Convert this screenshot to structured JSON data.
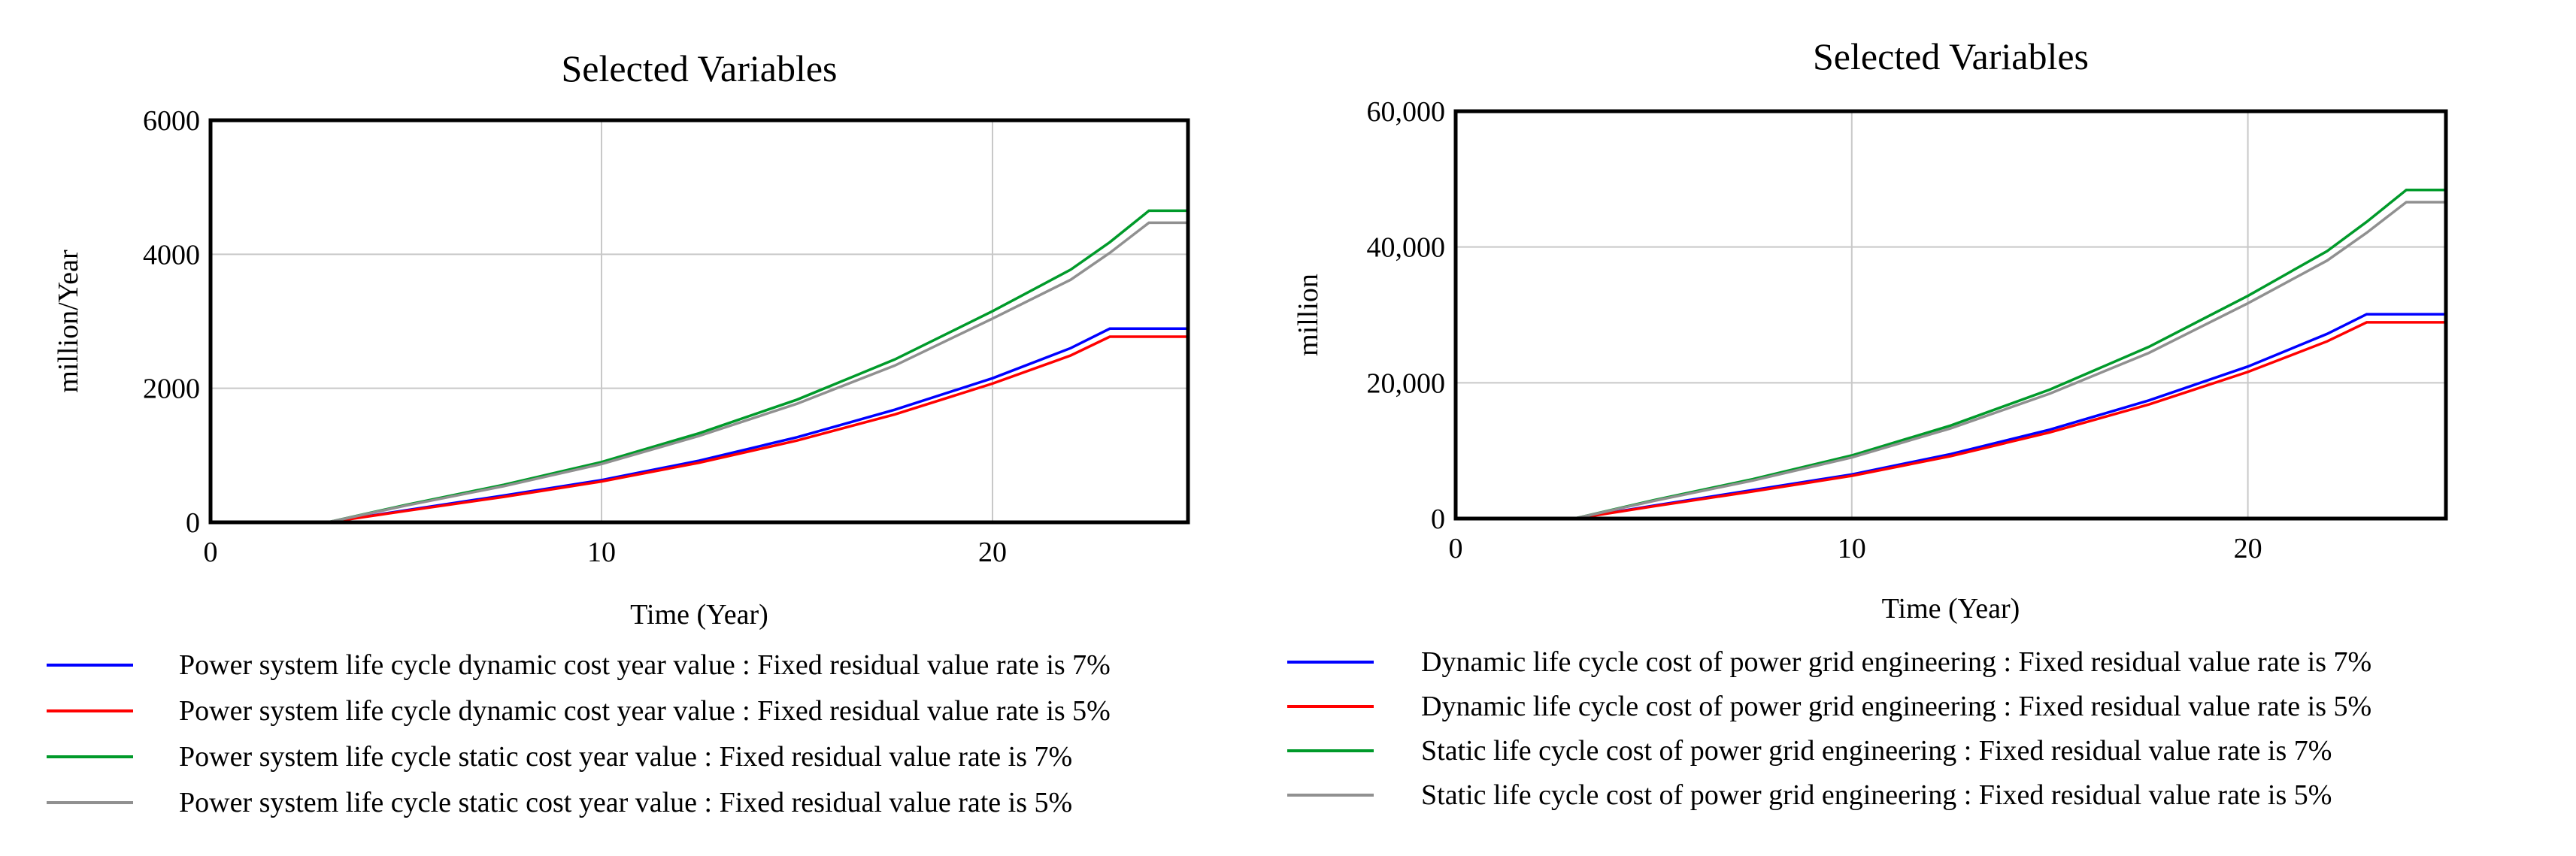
{
  "chart_data": [
    {
      "type": "line",
      "title": "Selected Variables",
      "xlabel": "Time (Year)",
      "ylabel": "million/Year",
      "xlim": [
        0,
        25
      ],
      "ylim": [
        0,
        6000
      ],
      "x_ticks": [
        "0",
        "10",
        "20"
      ],
      "x_tick_values": [
        0,
        10,
        20
      ],
      "y_ticks": [
        "0",
        "2000",
        "4000",
        "6000"
      ],
      "y_tick_values": [
        0,
        2000,
        4000,
        6000
      ],
      "grid": true,
      "legend_position": "bottom",
      "x": [
        0,
        3,
        5,
        7.5,
        10,
        12.5,
        15,
        17.5,
        20,
        22,
        23,
        24,
        25
      ],
      "series": [
        {
          "name": "Power system life cycle dynamic cost year value : Fixed residual value rate is 7%",
          "color": "#0000ff",
          "values": [
            0,
            0,
            180,
            400,
            630,
            920,
            1270,
            1680,
            2150,
            2600,
            2890,
            2890,
            2890
          ]
        },
        {
          "name": "Power system life cycle dynamic cost year value : Fixed residual value rate is 5%",
          "color": "#ff0000",
          "values": [
            0,
            0,
            170,
            380,
            610,
            890,
            1220,
            1610,
            2070,
            2490,
            2770,
            2770,
            2770
          ]
        },
        {
          "name": "Power system life cycle static cost year value : Fixed residual value rate is 7%",
          "color": "#009a2a",
          "values": [
            0,
            0,
            260,
            560,
            900,
            1330,
            1830,
            2430,
            3150,
            3770,
            4180,
            4650,
            4650
          ]
        },
        {
          "name": "Power system life cycle static cost year value : Fixed residual value rate is 5%",
          "color": "#909090",
          "values": [
            0,
            0,
            250,
            540,
            870,
            1290,
            1770,
            2340,
            3040,
            3620,
            4020,
            4470,
            4470
          ]
        }
      ]
    },
    {
      "type": "line",
      "title": "Selected Variables",
      "xlabel": "Time (Year)",
      "ylabel": "million",
      "xlim": [
        0,
        25
      ],
      "ylim": [
        0,
        60000
      ],
      "x_ticks": [
        "0",
        "10",
        "20"
      ],
      "x_tick_values": [
        0,
        10,
        20
      ],
      "y_ticks": [
        "0",
        "20,000",
        "40,000",
        "60,000"
      ],
      "y_tick_values": [
        0,
        20000,
        40000,
        60000
      ],
      "grid": true,
      "legend_position": "bottom",
      "x": [
        0,
        3,
        5,
        7.5,
        10,
        12.5,
        15,
        17.5,
        20,
        22,
        23,
        24,
        25
      ],
      "series": [
        {
          "name": "Dynamic life cycle cost of power grid engineering : Fixed residual value rate is  7%",
          "color": "#0000ff",
          "values": [
            0,
            0,
            1900,
            4200,
            6500,
            9500,
            13100,
            17400,
            22400,
            27200,
            30100,
            30100,
            30100
          ]
        },
        {
          "name": "Dynamic life cycle cost of power grid engineering : Fixed residual value rate is 5%",
          "color": "#ff0000",
          "values": [
            0,
            0,
            1800,
            4000,
            6300,
            9200,
            12700,
            16800,
            21600,
            26100,
            28900,
            28900,
            28900
          ]
        },
        {
          "name": "Static life cycle cost of power grid engineering : Fixed residual value rate is 7%",
          "color": "#009a2a",
          "values": [
            0,
            0,
            2700,
            5800,
            9300,
            13700,
            19000,
            25300,
            32800,
            39400,
            43700,
            48400,
            48400
          ]
        },
        {
          "name": "Static life cycle cost of power grid engineering : Fixed residual value rate is 5%",
          "color": "#909090",
          "values": [
            0,
            0,
            2600,
            5600,
            9000,
            13300,
            18400,
            24400,
            31700,
            38000,
            42100,
            46600,
            46600
          ]
        }
      ]
    }
  ]
}
